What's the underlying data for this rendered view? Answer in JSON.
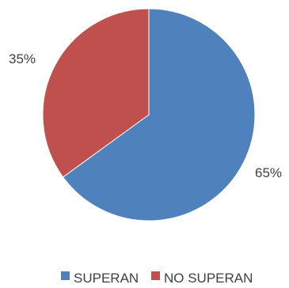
{
  "chart_data": {
    "type": "pie",
    "title": "",
    "categories": [
      "SUPERAN",
      "NO SUPERAN"
    ],
    "values": [
      65,
      35
    ],
    "labels": [
      "65%",
      "35%"
    ],
    "colors": [
      "#4F81BD",
      "#C0504D"
    ],
    "legend": "bottom",
    "start_angle_deg": 0,
    "direction": "clockwise"
  }
}
